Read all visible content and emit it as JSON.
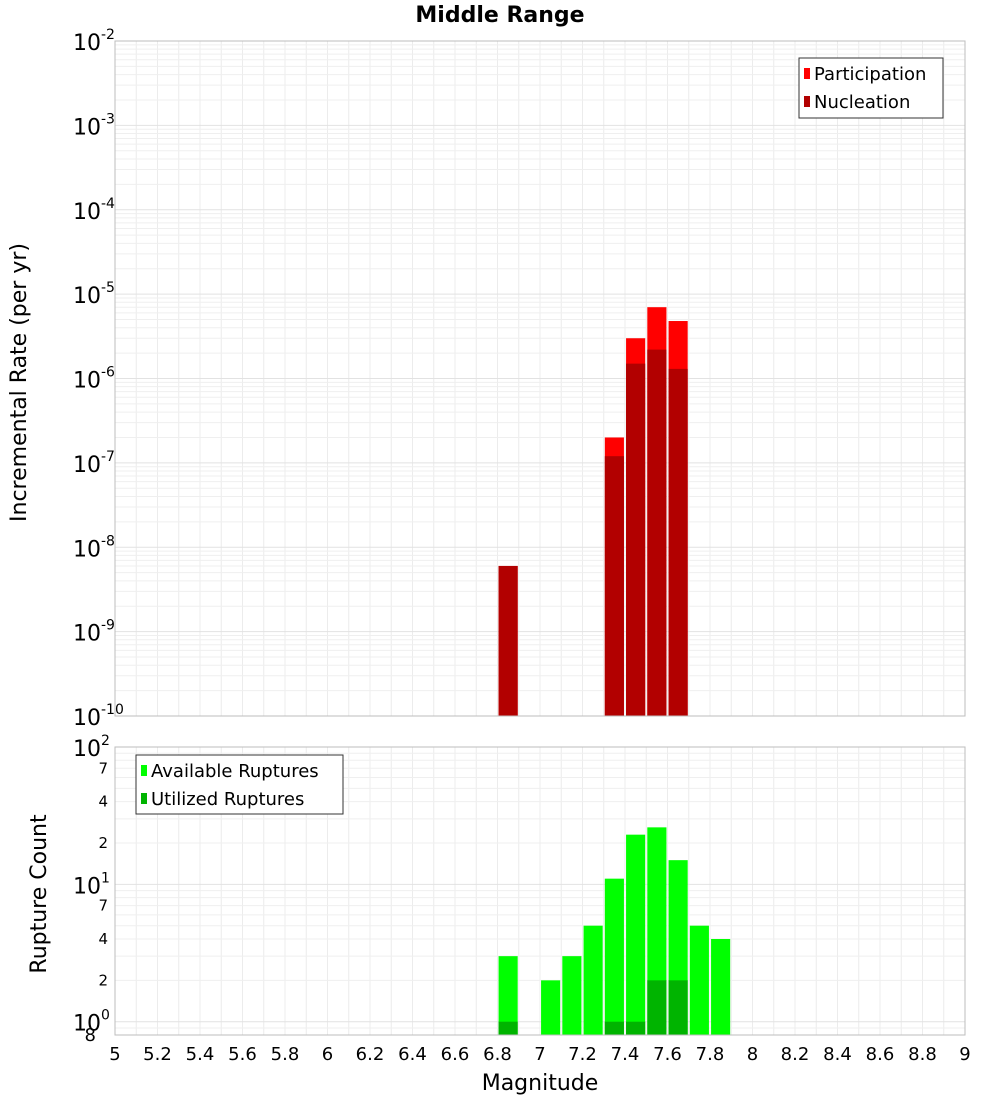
{
  "chart_data": [
    {
      "type": "bar",
      "title": "Middle Range",
      "xlabel": "Magnitude",
      "ylabel": "Incremental Rate (per yr)",
      "yscale": "log",
      "xlim": [
        5,
        9
      ],
      "ylim": [
        1e-10,
        0.01
      ],
      "y_ticks": [
        {
          "base": "10",
          "exp": "-10"
        },
        {
          "base": "10",
          "exp": "-9"
        },
        {
          "base": "10",
          "exp": "-8"
        },
        {
          "base": "10",
          "exp": "-7"
        },
        {
          "base": "10",
          "exp": "-6"
        },
        {
          "base": "10",
          "exp": "-5"
        },
        {
          "base": "10",
          "exp": "-4"
        },
        {
          "base": "10",
          "exp": "-3"
        },
        {
          "base": "10",
          "exp": "-2"
        }
      ],
      "legend": {
        "position": "top-right",
        "entries": [
          "Participation",
          "Nucleation"
        ]
      },
      "colors": {
        "Participation": "#ff0000",
        "Nucleation": "#b20000"
      },
      "series": [
        {
          "name": "Participation",
          "x": [
            6.85,
            7.35,
            7.45,
            7.55,
            7.65
          ],
          "values": [
            6e-09,
            2e-07,
            3e-06,
            7e-06,
            4.8e-06
          ]
        },
        {
          "name": "Nucleation",
          "x": [
            6.85,
            7.35,
            7.45,
            7.55,
            7.65
          ],
          "values": [
            6e-09,
            1.2e-07,
            1.5e-06,
            2.2e-06,
            1.3e-06
          ]
        }
      ],
      "grid": true
    },
    {
      "type": "bar",
      "xlabel": "Magnitude",
      "ylabel": "Rupture Count",
      "yscale": "log",
      "xlim": [
        5,
        9
      ],
      "ylim": [
        0.8,
        100
      ],
      "y_ticks": [
        {
          "value": 1,
          "base": "10",
          "exp": "0"
        },
        {
          "value": 10,
          "base": "10",
          "exp": "1"
        },
        {
          "value": 100,
          "base": "10",
          "exp": "2"
        }
      ],
      "y_minor_labels": [
        {
          "value": 0.8,
          "label": "8"
        },
        {
          "value": 2,
          "label": "2"
        },
        {
          "value": 4,
          "label": "4"
        },
        {
          "value": 7,
          "label": "7"
        },
        {
          "value": 20,
          "label": "2"
        },
        {
          "value": 40,
          "label": "4"
        },
        {
          "value": 70,
          "label": "7"
        }
      ],
      "legend": {
        "position": "top-left",
        "entries": [
          "Available Ruptures",
          "Utilized Ruptures"
        ]
      },
      "colors": {
        "Available Ruptures": "#00ff00",
        "Utilized Ruptures": "#00b400"
      },
      "series": [
        {
          "name": "Available Ruptures",
          "x": [
            6.85,
            7.05,
            7.15,
            7.25,
            7.35,
            7.45,
            7.55,
            7.65,
            7.75,
            7.85
          ],
          "values": [
            3,
            2,
            3,
            5,
            11,
            23,
            26,
            15,
            5,
            4
          ]
        },
        {
          "name": "Utilized Ruptures",
          "x": [
            6.85,
            7.35,
            7.45,
            7.55,
            7.65
          ],
          "values": [
            1,
            1,
            1,
            2,
            2
          ]
        }
      ],
      "grid": true
    }
  ],
  "x_ticks": [
    "5",
    "5.2",
    "5.4",
    "5.6",
    "5.8",
    "6",
    "6.2",
    "6.4",
    "6.6",
    "6.8",
    "7",
    "7.2",
    "7.4",
    "7.6",
    "7.8",
    "8",
    "8.2",
    "8.4",
    "8.6",
    "8.8",
    "9"
  ],
  "bar_width": 0.09
}
